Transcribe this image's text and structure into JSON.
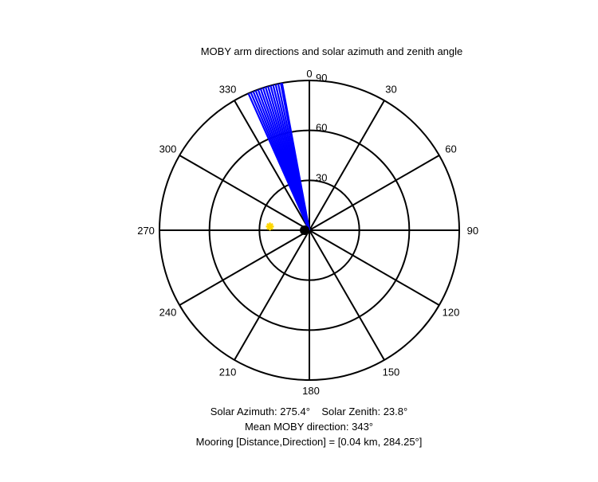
{
  "chart_data": {
    "type": "polar",
    "title": "MOBY arm directions and solar azimuth and zenith angle",
    "angle_ticks": [
      {
        "angle": 0,
        "label": "0"
      },
      {
        "angle": 30,
        "label": "30"
      },
      {
        "angle": 60,
        "label": "60"
      },
      {
        "angle": 90,
        "label": "90"
      },
      {
        "angle": 120,
        "label": "120"
      },
      {
        "angle": 150,
        "label": "150"
      },
      {
        "angle": 180,
        "label": "180"
      },
      {
        "angle": 210,
        "label": "210"
      },
      {
        "angle": 240,
        "label": "240"
      },
      {
        "angle": 270,
        "label": "270"
      },
      {
        "angle": 300,
        "label": "300"
      },
      {
        "angle": 330,
        "label": "330"
      }
    ],
    "radial_ticks": [
      {
        "value": 30,
        "label": "30"
      },
      {
        "value": 60,
        "label": "60"
      },
      {
        "value": 90,
        "label": "90"
      }
    ],
    "r_max": 90,
    "angle_zero": "top",
    "angle_direction": "clockwise",
    "moby_arm_directions": [
      336,
      337,
      338,
      339,
      340,
      341,
      342,
      343,
      344,
      345,
      346,
      347,
      348,
      349,
      349.5
    ],
    "moby_arm_length": 90,
    "moby_color": "#0000ff",
    "sun": {
      "azimuth": 275.4,
      "zenith": 23.8,
      "color": "#ffd700"
    },
    "center_marker_color": "#000000",
    "grid": true
  },
  "captions": {
    "solar_azimuth": "Solar Azimuth: 275.4°",
    "solar_zenith": "Solar Zenith: 23.8°",
    "mean_direction": "Mean MOBY direction: 343°",
    "mooring": "Mooring [Distance,Direction] = [0.04 km, 284.25°]"
  }
}
